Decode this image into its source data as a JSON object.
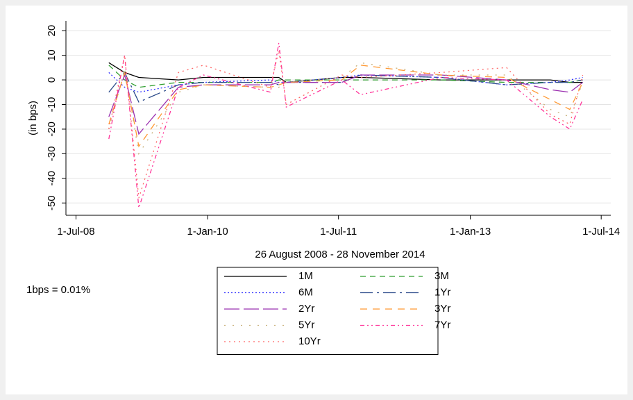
{
  "chart_data": {
    "type": "line",
    "ylabel": "(in bps)",
    "xlabel": "26 August 2008 - 28 November 2014",
    "note": "1bps = 0.01%",
    "x": [
      "2008-11-15",
      "2009-01-20",
      "2009-03-20",
      "2009-09-01",
      "2009-12-15",
      "2010-09-20",
      "2010-10-25",
      "2010-11-25",
      "2011-07-15",
      "2011-10-01",
      "2012-09-01",
      "2013-06-01",
      "2013-12-01",
      "2014-02-20",
      "2014-04-15"
    ],
    "xlim": [
      "2008-05-20",
      "2014-08-10"
    ],
    "xticks": [
      {
        "value": "2008-07-01",
        "label": "1-Jul-08"
      },
      {
        "value": "2010-01-01",
        "label": "1-Jan-10"
      },
      {
        "value": "2011-07-01",
        "label": "1-Jul-11"
      },
      {
        "value": "2013-01-01",
        "label": "1-Jan-13"
      },
      {
        "value": "2014-07-01",
        "label": "1-Jul-14"
      }
    ],
    "ylim": [
      -55,
      24
    ],
    "yticks": [
      20,
      10,
      0,
      -10,
      -20,
      -30,
      -40,
      -50
    ],
    "grid": true,
    "legend": "bottom",
    "legend_columns": 2,
    "series": [
      {
        "name": "1M",
        "color": "#000000",
        "dash": "none",
        "values": [
          7,
          3,
          1,
          0,
          1,
          1,
          1,
          -1,
          1,
          1,
          0,
          0,
          0,
          -1,
          -1
        ]
      },
      {
        "name": "3M",
        "color": "#2e9e2e",
        "dash": "8 6",
        "values": [
          6,
          0,
          -3,
          -1,
          -1,
          -1,
          0,
          0,
          0,
          0,
          0,
          -1,
          -1,
          -1,
          0
        ]
      },
      {
        "name": "6M",
        "color": "#3333ff",
        "dash": "2 3",
        "values": [
          3,
          -3,
          -5,
          -2,
          -1,
          0,
          -1,
          -1,
          1,
          2,
          1,
          -2,
          -1,
          0,
          1
        ]
      },
      {
        "name": "1Yr",
        "color": "#2b4a8a",
        "dash": "18 6 3 6",
        "values": [
          -5,
          3,
          -9,
          -2,
          -1,
          -1,
          -2,
          -1,
          -1,
          2,
          1,
          -2,
          -1,
          -1,
          0
        ]
      },
      {
        "name": "2Yr",
        "color": "#9b30b0",
        "dash": "22 6",
        "values": [
          -15,
          2,
          -22,
          -3,
          -2,
          -2,
          -1,
          -1,
          -1,
          2,
          2,
          0,
          -4,
          -5,
          -1
        ]
      },
      {
        "name": "3Yr",
        "color": "#ff9933",
        "dash": "10 8",
        "values": [
          -18,
          3,
          -27,
          -4,
          -2,
          -3,
          -2,
          -1,
          0,
          6,
          2,
          1,
          -8,
          -12,
          -1
        ]
      },
      {
        "name": "5Yr",
        "color": "#c8b07a",
        "dash": "2 10",
        "values": [
          -20,
          5,
          -30,
          -5,
          -2,
          -3,
          -3,
          -1,
          1,
          7,
          2,
          2,
          -12,
          -15,
          -1
        ]
      },
      {
        "name": "7Yr",
        "color": "#ff3399",
        "dash": "6 4 2 4 2 4",
        "values": [
          -24,
          10,
          -52,
          -3,
          2,
          -5,
          15,
          -11,
          0,
          -6,
          1,
          0,
          -15,
          -20,
          -8
        ]
      },
      {
        "name": "10Yr",
        "color": "#ff6666",
        "dash": "2 5",
        "values": [
          -20,
          10,
          -48,
          3,
          6,
          -3,
          12,
          -10,
          2,
          1,
          3,
          5,
          -14,
          -18,
          2
        ]
      }
    ]
  }
}
